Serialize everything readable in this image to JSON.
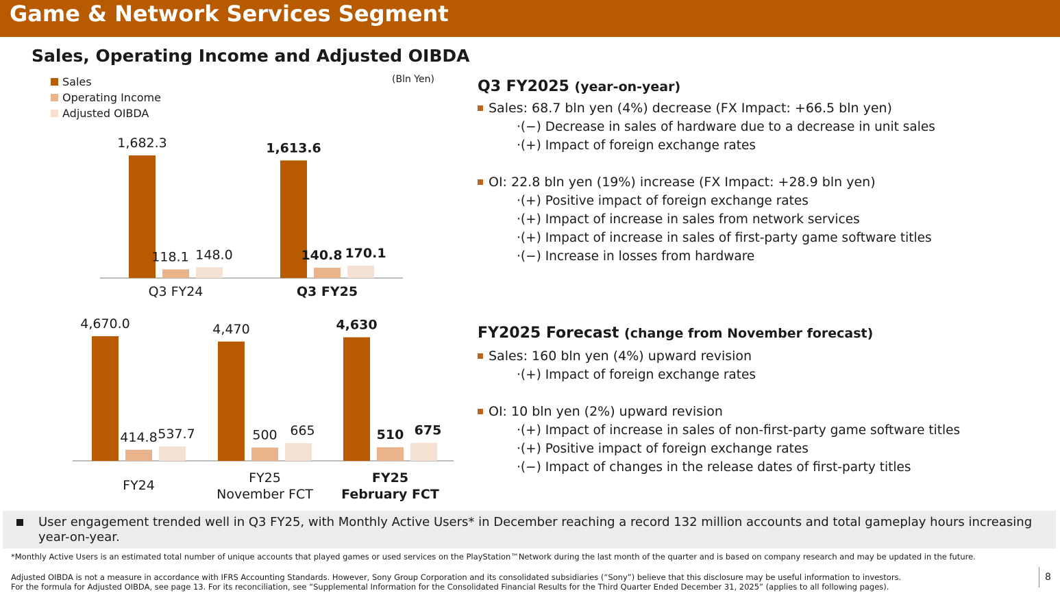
{
  "header": {
    "title": "Game & Network Services Segment"
  },
  "chart_section": {
    "title": "Sales, Operating Income and Adjusted OIBDA",
    "unit": "(Bln Yen)",
    "legend": [
      {
        "label": "Sales",
        "color": "#b85a00"
      },
      {
        "label": "Operating Income",
        "color": "#e9b48c"
      },
      {
        "label": "Adjusted OIBDA",
        "color": "#f5e1d3"
      }
    ]
  },
  "chart_data": [
    {
      "type": "bar",
      "categories": [
        "Q3 FY24",
        "Q3 FY25"
      ],
      "category_bold": [
        false,
        true
      ],
      "series": [
        {
          "name": "Sales",
          "values": [
            1682.3,
            1613.6
          ],
          "labels": [
            "1,682.3",
            "1,613.6"
          ],
          "color": "#b85a00"
        },
        {
          "name": "Operating Income",
          "values": [
            118.1,
            140.8
          ],
          "labels": [
            "118.1",
            "140.8"
          ],
          "color": "#e9b48c"
        },
        {
          "name": "Adjusted OIBDA",
          "values": [
            148.0,
            170.1
          ],
          "labels": [
            "148.0",
            "170.1"
          ],
          "color": "#f5e1d3"
        }
      ],
      "grid": false
    },
    {
      "type": "bar",
      "categories": [
        "FY24",
        "FY25\nNovember FCT",
        "FY25\nFebruary FCT"
      ],
      "category_bold": [
        false,
        false,
        true
      ],
      "series": [
        {
          "name": "Sales",
          "values": [
            4670.0,
            4470,
            4630
          ],
          "labels": [
            "4,670.0",
            "4,470",
            "4,630"
          ],
          "color": "#b85a00"
        },
        {
          "name": "Operating Income",
          "values": [
            414.8,
            500,
            510
          ],
          "labels": [
            "414.8",
            "500",
            "510"
          ],
          "color": "#e9b48c"
        },
        {
          "name": "Adjusted OIBDA",
          "values": [
            537.7,
            665,
            675
          ],
          "labels": [
            "537.7",
            "665",
            "675"
          ],
          "color": "#f5e1d3"
        }
      ],
      "grid": false
    }
  ],
  "q3": {
    "heading": "Q3 FY2025",
    "heading_note": "(year-on-year)",
    "sales": "Sales: 68.7 bln yen (4%) decrease (FX Impact: +66.5 bln yen)",
    "sales_points": [
      "·(−) Decrease in sales of hardware due to a decrease in unit sales",
      "·(+) Impact of foreign exchange rates"
    ],
    "oi": "OI: 22.8 bln yen (19%) increase (FX Impact: +28.9 bln yen)",
    "oi_points": [
      "·(+) Positive impact of foreign exchange rates",
      "·(+) Impact of increase in sales from network services",
      "·(+) Impact of increase in sales of first-party game software titles",
      "·(−) Increase in losses from hardware"
    ]
  },
  "forecast": {
    "heading": "FY2025 Forecast",
    "heading_note": "(change from November forecast)",
    "sales": "Sales: 160 bln yen (4%) upward revision",
    "sales_points": [
      "·(+) Impact of foreign exchange rates"
    ],
    "oi": "OI: 10 bln yen (2%) upward revision",
    "oi_points": [
      "·(+) Impact of increase in sales of non-first-party game software titles",
      "·(+) Positive impact of foreign exchange rates",
      "·(−) Impact of changes in the release dates of first-party titles"
    ]
  },
  "engagement": "User engagement trended well in Q3 FY25, with Monthly Active Users* in December reaching a record 132 million accounts and total gameplay hours increasing year-on-year.",
  "footnotes": {
    "mau": "*Monthly Active Users is an estimated total number of unique accounts that played games or used services on the PlayStation™Network during the last month of the quarter and is based on company research and may be updated in the future.",
    "oibda_1": "Adjusted OIBDA is not a measure in accordance with IFRS Accounting Standards. However, Sony Group Corporation and its consolidated subsidiaries (“Sony”) believe that this disclosure may be useful information to investors.",
    "oibda_2": "For the formula for Adjusted OIBDA, see page 13. For its reconciliation, see “Supplemental Information for the Consolidated Financial Results for the Third Quarter Ended December 31, 2025” (applies to all following pages)."
  },
  "page_number": "8"
}
